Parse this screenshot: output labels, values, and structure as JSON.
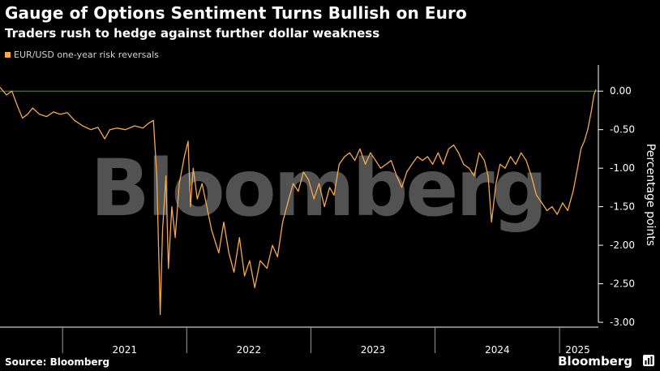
{
  "title": "Gauge of Options Sentiment Turns Bullish on Euro",
  "subtitle": "Traders rush to hedge against further dollar weakness",
  "footer": {
    "source": "Source: Bloomberg",
    "brand": "Bloomberg"
  },
  "watermark": "Bloomberg",
  "colors": {
    "line": "#f4a950",
    "background": "#000000",
    "reference_line": "#5e8a4e",
    "axis": "#ffffff"
  },
  "chart_data": {
    "type": "line",
    "title": "Gauge of Options Sentiment Turns Bullish on Euro",
    "subtitle": "Traders rush to hedge against further dollar weakness",
    "xlabel": "",
    "ylabel": "Percentage points",
    "legend": {
      "placement": "top-left",
      "entries": [
        "EUR/USD one-year risk reversals"
      ]
    },
    "x_ticks": [
      "2021",
      "2022",
      "2023",
      "2024",
      "2025"
    ],
    "y_ticks": [
      "0.00",
      "-0.50",
      "-1.00",
      "-1.50",
      "-2.00",
      "-2.50",
      "-3.00"
    ],
    "ylim": [
      -3.0,
      0.15
    ],
    "xlim": [
      "2020-07-01",
      "2025-04-18"
    ],
    "y_axis_side": "right",
    "reference_line": 0,
    "grid": false,
    "series": [
      {
        "name": "EUR/USD one-year risk reversals",
        "points": [
          [
            "2020-07-01",
            0.05
          ],
          [
            "2020-07-20",
            -0.05
          ],
          [
            "2020-08-05",
            0.0
          ],
          [
            "2020-08-20",
            -0.18
          ],
          [
            "2020-09-05",
            -0.35
          ],
          [
            "2020-09-20",
            -0.3
          ],
          [
            "2020-10-05",
            -0.22
          ],
          [
            "2020-10-25",
            -0.3
          ],
          [
            "2020-11-15",
            -0.33
          ],
          [
            "2020-12-05",
            -0.27
          ],
          [
            "2020-12-25",
            -0.3
          ],
          [
            "2021-01-15",
            -0.28
          ],
          [
            "2021-02-05",
            -0.38
          ],
          [
            "2021-03-01",
            -0.45
          ],
          [
            "2021-03-25",
            -0.5
          ],
          [
            "2021-04-15",
            -0.47
          ],
          [
            "2021-05-05",
            -0.62
          ],
          [
            "2021-05-20",
            -0.5
          ],
          [
            "2021-06-10",
            -0.48
          ],
          [
            "2021-07-05",
            -0.5
          ],
          [
            "2021-08-01",
            -0.45
          ],
          [
            "2021-08-25",
            -0.48
          ],
          [
            "2021-09-10",
            -0.42
          ],
          [
            "2021-09-25",
            -0.38
          ],
          [
            "2021-10-05",
            -1.1
          ],
          [
            "2021-10-15",
            -2.9
          ],
          [
            "2021-10-22",
            -1.8
          ],
          [
            "2021-11-01",
            -1.1
          ],
          [
            "2021-11-08",
            -2.3
          ],
          [
            "2021-11-18",
            -1.5
          ],
          [
            "2021-11-28",
            -1.9
          ],
          [
            "2021-12-10",
            -1.2
          ],
          [
            "2021-12-25",
            -0.85
          ],
          [
            "2022-01-05",
            -0.65
          ],
          [
            "2022-01-12",
            -1.5
          ],
          [
            "2022-01-20",
            -1.0
          ],
          [
            "2022-02-01",
            -1.4
          ],
          [
            "2022-02-15",
            -1.2
          ],
          [
            "2022-03-01",
            -1.5
          ],
          [
            "2022-03-15",
            -1.8
          ],
          [
            "2022-04-05",
            -2.1
          ],
          [
            "2022-04-20",
            -1.7
          ],
          [
            "2022-05-05",
            -2.1
          ],
          [
            "2022-05-20",
            -2.35
          ],
          [
            "2022-06-05",
            -1.9
          ],
          [
            "2022-06-20",
            -2.4
          ],
          [
            "2022-07-05",
            -2.2
          ],
          [
            "2022-07-20",
            -2.55
          ],
          [
            "2022-08-05",
            -2.2
          ],
          [
            "2022-08-25",
            -2.3
          ],
          [
            "2022-09-10",
            -2.0
          ],
          [
            "2022-09-25",
            -2.15
          ],
          [
            "2022-10-10",
            -1.7
          ],
          [
            "2022-10-25",
            -1.45
          ],
          [
            "2022-11-10",
            -1.2
          ],
          [
            "2022-11-25",
            -1.3
          ],
          [
            "2022-12-10",
            -1.05
          ],
          [
            "2022-12-25",
            -1.15
          ],
          [
            "2023-01-10",
            -1.4
          ],
          [
            "2023-01-25",
            -1.2
          ],
          [
            "2023-02-10",
            -1.5
          ],
          [
            "2023-02-25",
            -1.25
          ],
          [
            "2023-03-10",
            -1.35
          ],
          [
            "2023-03-25",
            -0.95
          ],
          [
            "2023-04-10",
            -0.85
          ],
          [
            "2023-04-25",
            -0.8
          ],
          [
            "2023-05-10",
            -0.9
          ],
          [
            "2023-05-25",
            -0.75
          ],
          [
            "2023-06-10",
            -0.95
          ],
          [
            "2023-06-25",
            -0.8
          ],
          [
            "2023-07-10",
            -0.9
          ],
          [
            "2023-07-25",
            -1.0
          ],
          [
            "2023-08-10",
            -0.95
          ],
          [
            "2023-08-25",
            -0.9
          ],
          [
            "2023-09-10",
            -1.1
          ],
          [
            "2023-09-25",
            -1.25
          ],
          [
            "2023-10-10",
            -1.05
          ],
          [
            "2023-10-25",
            -0.95
          ],
          [
            "2023-11-10",
            -0.85
          ],
          [
            "2023-11-25",
            -0.9
          ],
          [
            "2023-12-10",
            -0.85
          ],
          [
            "2023-12-25",
            -0.95
          ],
          [
            "2024-01-10",
            -0.8
          ],
          [
            "2024-01-25",
            -0.95
          ],
          [
            "2024-02-10",
            -0.75
          ],
          [
            "2024-02-25",
            -0.7
          ],
          [
            "2024-03-10",
            -0.8
          ],
          [
            "2024-03-25",
            -0.95
          ],
          [
            "2024-04-10",
            -1.0
          ],
          [
            "2024-04-25",
            -1.1
          ],
          [
            "2024-05-10",
            -0.8
          ],
          [
            "2024-05-25",
            -0.9
          ],
          [
            "2024-06-05",
            -1.1
          ],
          [
            "2024-06-15",
            -1.7
          ],
          [
            "2024-06-28",
            -1.2
          ],
          [
            "2024-07-10",
            -0.95
          ],
          [
            "2024-07-25",
            -1.0
          ],
          [
            "2024-08-10",
            -0.85
          ],
          [
            "2024-08-25",
            -0.95
          ],
          [
            "2024-09-10",
            -0.8
          ],
          [
            "2024-09-25",
            -0.9
          ],
          [
            "2024-10-10",
            -1.1
          ],
          [
            "2024-10-25",
            -1.35
          ],
          [
            "2024-11-10",
            -1.45
          ],
          [
            "2024-11-25",
            -1.55
          ],
          [
            "2024-12-10",
            -1.5
          ],
          [
            "2024-12-25",
            -1.6
          ],
          [
            "2025-01-10",
            -1.45
          ],
          [
            "2025-01-25",
            -1.55
          ],
          [
            "2025-02-10",
            -1.3
          ],
          [
            "2025-02-25",
            -0.95
          ],
          [
            "2025-03-05",
            -0.75
          ],
          [
            "2025-03-15",
            -0.65
          ],
          [
            "2025-03-25",
            -0.5
          ],
          [
            "2025-04-05",
            -0.25
          ],
          [
            "2025-04-12",
            -0.05
          ],
          [
            "2025-04-18",
            0.02
          ]
        ]
      }
    ]
  }
}
